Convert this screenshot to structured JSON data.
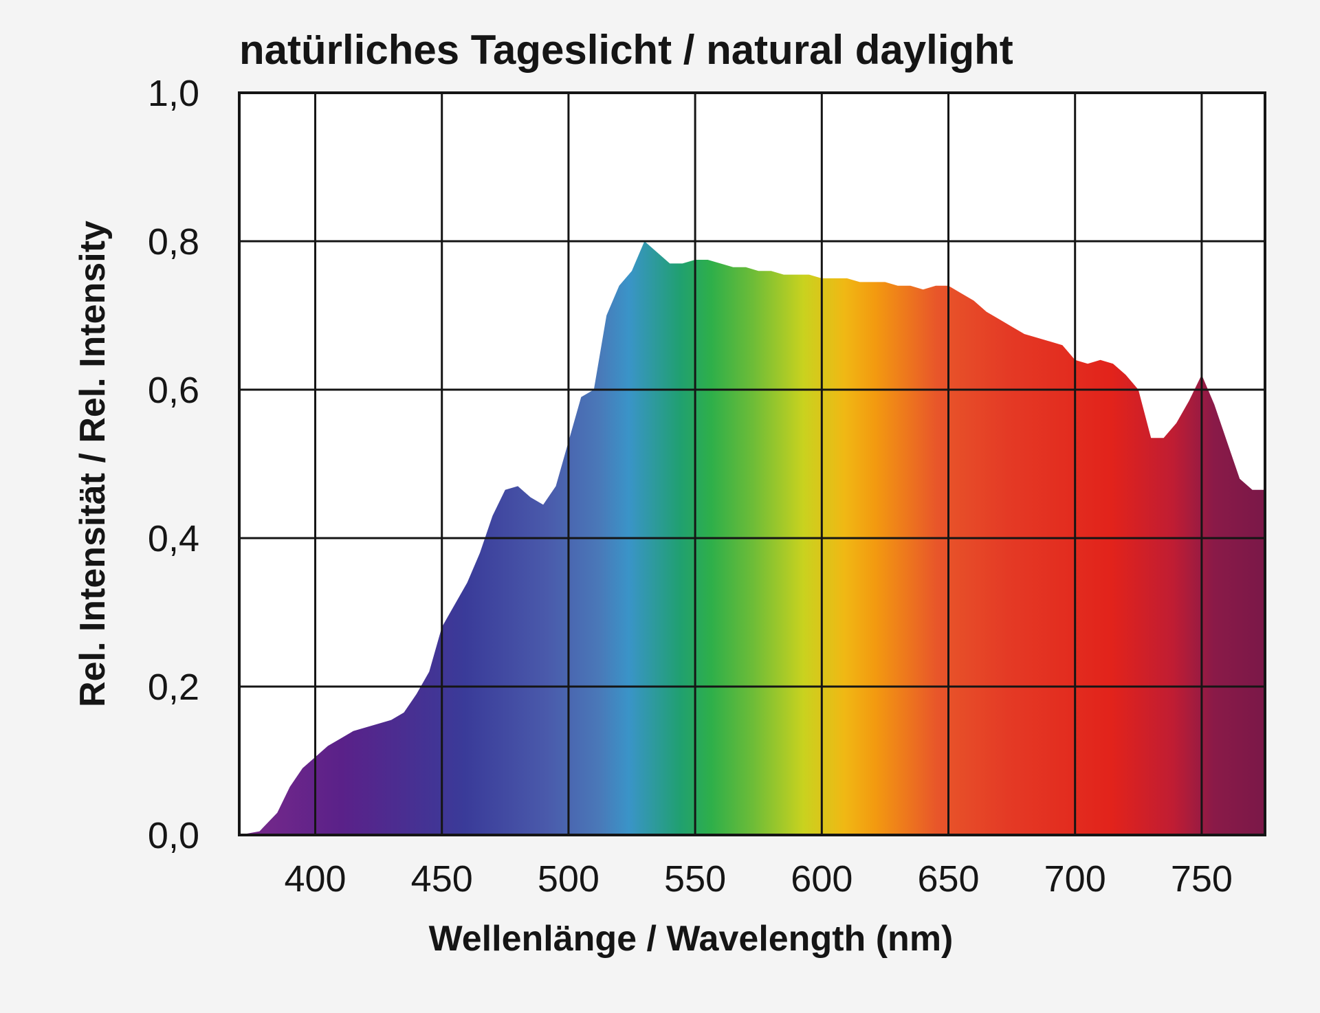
{
  "chart_data": {
    "type": "area",
    "title": "natürliches Tageslicht / natural daylight",
    "xlabel": "Wellenlänge / Wavelength (nm)",
    "ylabel": "Rel. Intensität / Rel. Intensity",
    "xlim": [
      370,
      775
    ],
    "ylim": [
      0,
      1.0
    ],
    "x_ticks": [
      400,
      450,
      500,
      550,
      600,
      650,
      700,
      750
    ],
    "x_tick_labels": [
      "400",
      "450",
      "500",
      "550",
      "600",
      "650",
      "700",
      "750"
    ],
    "y_ticks": [
      0,
      0.2,
      0.4,
      0.6,
      0.8,
      1.0
    ],
    "y_tick_labels": [
      "0,0",
      "0,2",
      "0,4",
      "0,6",
      "0,8",
      "1,0"
    ],
    "grid": true,
    "fill": "visible-spectrum gradient",
    "x": [
      370,
      378,
      385,
      390,
      395,
      400,
      405,
      410,
      415,
      420,
      425,
      430,
      435,
      440,
      445,
      450,
      455,
      460,
      465,
      470,
      475,
      480,
      485,
      490,
      495,
      500,
      505,
      510,
      515,
      520,
      525,
      530,
      535,
      540,
      545,
      550,
      555,
      560,
      565,
      570,
      575,
      580,
      585,
      590,
      595,
      600,
      605,
      610,
      615,
      620,
      625,
      630,
      635,
      640,
      645,
      650,
      655,
      660,
      665,
      670,
      675,
      680,
      685,
      690,
      695,
      700,
      705,
      710,
      715,
      720,
      725,
      730,
      735,
      740,
      745,
      750,
      755,
      760,
      765,
      770,
      775
    ],
    "y": [
      0.0,
      0.005,
      0.03,
      0.065,
      0.09,
      0.105,
      0.12,
      0.13,
      0.14,
      0.145,
      0.15,
      0.155,
      0.165,
      0.19,
      0.22,
      0.28,
      0.31,
      0.34,
      0.38,
      0.43,
      0.465,
      0.47,
      0.455,
      0.445,
      0.47,
      0.53,
      0.59,
      0.6,
      0.7,
      0.74,
      0.76,
      0.8,
      0.785,
      0.77,
      0.77,
      0.775,
      0.775,
      0.77,
      0.765,
      0.765,
      0.76,
      0.76,
      0.755,
      0.755,
      0.755,
      0.75,
      0.75,
      0.75,
      0.745,
      0.745,
      0.745,
      0.74,
      0.74,
      0.735,
      0.74,
      0.74,
      0.73,
      0.72,
      0.705,
      0.695,
      0.685,
      0.675,
      0.67,
      0.665,
      0.66,
      0.64,
      0.635,
      0.64,
      0.635,
      0.62,
      0.6,
      0.535,
      0.535,
      0.555,
      0.585,
      0.62,
      0.58,
      0.53,
      0.48,
      0.465,
      0.465
    ],
    "colors": {
      "violet": "#5a2189",
      "indigo": "#3a3b99",
      "blue": "#4a6cb5",
      "cyan": "#3a94c8",
      "green": "#2eaf4a",
      "yellow": "#d3d21c",
      "orange": "#f39a10",
      "red": "#e2231b",
      "deep-red": "#8a1a48"
    }
  }
}
